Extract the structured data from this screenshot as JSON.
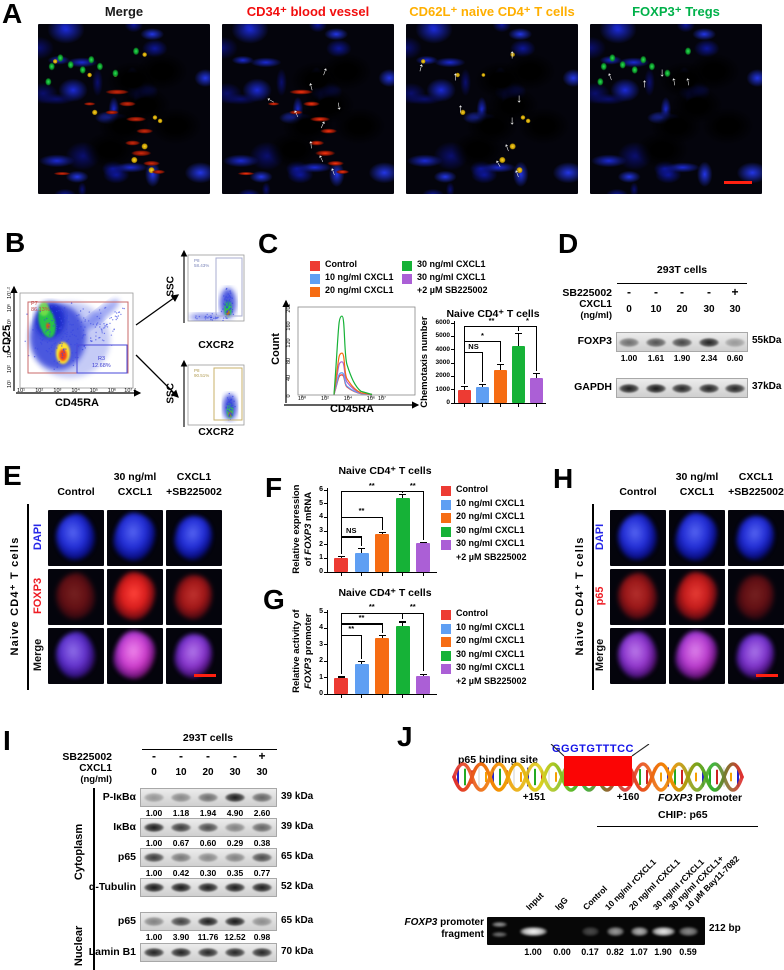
{
  "figure": {
    "background": "#ffffff"
  },
  "legend": [
    {
      "label": "Control",
      "color": "#ed3b33"
    },
    {
      "label": "10 ng/ml CXCL1",
      "color": "#5f9ff3"
    },
    {
      "label": "20 ng/ml CXCL1",
      "color": "#f66c13"
    },
    {
      "label": "30 ng/ml CXCL1",
      "color": "#16b237"
    },
    {
      "label": "30 ng/ml CXCL1",
      "label2": "+2 µM SB225002",
      "color": "#ab5fd6"
    }
  ],
  "panelA": {
    "label": "A",
    "titles": [
      {
        "text": "Merge",
        "color": "#1b1b1b"
      },
      {
        "text": "CD34⁺ blood vessel",
        "color": "#f20d0d"
      },
      {
        "text": "CD62L⁺ naive CD4⁺ T cells",
        "color": "#ffaf00"
      },
      {
        "text": "FOXP3⁺ Tregs",
        "color": "#00b14a"
      }
    ]
  },
  "panelB": {
    "label": "B",
    "main": {
      "ylabel": "CD25",
      "xlabel": "CD45RA",
      "xticks": [
        "10¹",
        "10²",
        "10³",
        "10⁴",
        "10⁵",
        "10⁶",
        "10⁷·²"
      ],
      "yticks": [
        "10¹",
        "10²",
        "10³",
        "10⁴",
        "10⁵",
        "10⁶",
        "10⁷·²"
      ],
      "gate1": {
        "name": "P7",
        "pct": "86.13%"
      },
      "gate2": {
        "name": "R3",
        "pct": "12.68%"
      }
    },
    "top": {
      "ylabel": "SSC",
      "xlabel": "CXCR2",
      "pct": "58.43%",
      "gate": "P8"
    },
    "bottom": {
      "ylabel": "SSC",
      "xlabel": "CXCR2",
      "pct": "90.51%",
      "gate": "P8"
    }
  },
  "panelC": {
    "label": "C",
    "hist": {
      "type": "line",
      "ylabel": "Count",
      "xlabel": "CD45RA",
      "ymax": 202,
      "yticks": [
        "202",
        "160",
        "120",
        "80",
        "40",
        "0"
      ],
      "xticks": [
        "10⁰",
        "10²",
        "10⁴",
        "10⁶",
        "10⁷"
      ],
      "series": [
        {
          "name": "Control",
          "peak": 45,
          "color": "#ed3b33"
        },
        {
          "name": "10 ng/ml CXCL1",
          "peak": 50,
          "color": "#5f9ff3"
        },
        {
          "name": "20 ng/ml CXCL1",
          "peak": 95,
          "color": "#f66c13"
        },
        {
          "name": "30 ng/ml CXCL1",
          "peak": 180,
          "color": "#16b237"
        },
        {
          "name": "30 ng/ml CXCL1 +2 µM SB225002",
          "peak": 75,
          "color": "#ab5fd6"
        }
      ]
    },
    "bar": {
      "type": "bar",
      "title": "Naive CD4⁺ T cells",
      "ylabel": "Chemotaxis number",
      "ymax": 6000,
      "yticks": [
        6000,
        5000,
        4000,
        3000,
        2000,
        1000,
        0
      ],
      "categories": [
        "Control",
        "10 ng/ml CXCL1",
        "20 ng/ml CXCL1",
        "30 ng/ml CXCL1",
        "30 ng/ml CXCL1 +2 µM SB225002"
      ],
      "values": [
        1000,
        1200,
        2450,
        4250,
        1900
      ],
      "errors": [
        300,
        250,
        500,
        1000,
        350
      ],
      "sig": [
        {
          "from": 0,
          "to": 1,
          "label": "NS",
          "y": 3800
        },
        {
          "from": 0,
          "to": 2,
          "label": "*",
          "y": 4650
        },
        {
          "from": 0,
          "to": 3,
          "label": "**",
          "y": 5750
        },
        {
          "from": 3,
          "to": 4,
          "label": "*",
          "y": 5750
        }
      ]
    }
  },
  "panelD": {
    "label": "D",
    "cells": "293T cells",
    "drug": "SB225002",
    "drug_vals": [
      "-",
      "-",
      "-",
      "-",
      "+"
    ],
    "ligand": "CXCL1",
    "ligand_unit": "(ng/ml)",
    "doses": [
      "0",
      "10",
      "20",
      "30",
      "30"
    ],
    "blots": [
      {
        "name": "FOXP3",
        "kda": "55kDa",
        "values": [
          "1.00",
          "1.61",
          "1.90",
          "2.34",
          "0.60"
        ],
        "band": [
          0.55,
          0.68,
          0.75,
          0.92,
          0.33
        ]
      },
      {
        "name": "GAPDH",
        "kda": "37kDa",
        "values": [],
        "band": [
          0.95,
          0.97,
          0.9,
          0.92,
          0.9
        ]
      }
    ]
  },
  "panelE": {
    "label": "E",
    "side": "Naive CD4⁺ T cells",
    "cols": [
      [
        "Control"
      ],
      [
        "30 ng/ml",
        "CXCL1"
      ],
      [
        "CXCL1",
        "+SB225002"
      ]
    ],
    "rows": [
      {
        "name": "DAPI",
        "color": "#2727e8"
      },
      {
        "name": "FOXP3",
        "color": "#ee1c24"
      },
      {
        "name": "Merge",
        "color": "#111111"
      }
    ]
  },
  "panelF": {
    "label": "F",
    "title": "Naive CD4⁺ T cells",
    "ylabel_line1": "Relative expression",
    "ylabel_line2_pre": "of ",
    "ylabel_italic": "FOXP3",
    "ylabel_line2_post": " mRNA",
    "bar": {
      "type": "bar",
      "ymax": 6,
      "yticks": [
        6,
        5,
        4,
        3,
        2,
        1,
        0
      ],
      "values": [
        1.0,
        1.4,
        2.8,
        5.4,
        2.1
      ],
      "errors": [
        0.15,
        0.35,
        0.12,
        0.3,
        0.08
      ],
      "sig": [
        {
          "from": 0,
          "to": 1,
          "label": "NS",
          "y": 2.6
        },
        {
          "from": 0,
          "to": 2,
          "label": "**",
          "y": 4.05
        },
        {
          "from": 0,
          "to": 3,
          "label": "**",
          "y": 5.9
        },
        {
          "from": 3,
          "to": 4,
          "label": "**",
          "y": 5.9
        }
      ]
    }
  },
  "panelG": {
    "label": "G",
    "title": "Naive CD4⁺ T cells",
    "ylabel_line1": "Relative activity of",
    "ylabel_line2_pre": "",
    "ylabel_italic": "FOXP3",
    "ylabel_line2_post": " promoter",
    "bar": {
      "type": "bar",
      "ymax": 5,
      "yticks": [
        5,
        4,
        3,
        2,
        1,
        0
      ],
      "values": [
        1.0,
        1.8,
        3.4,
        4.15,
        1.1
      ],
      "errors": [
        0.07,
        0.2,
        0.18,
        0.28,
        0.15
      ],
      "sig": [
        {
          "from": 0,
          "to": 1,
          "label": "**",
          "y": 3.6
        },
        {
          "from": 0,
          "to": 2,
          "label": "**",
          "y": 4.3
        },
        {
          "from": 0,
          "to": 3,
          "label": "**",
          "y": 4.95
        },
        {
          "from": 3,
          "to": 4,
          "label": "**",
          "y": 4.95
        }
      ]
    }
  },
  "panelH": {
    "label": "H",
    "side": "Naive CD4⁺ T cells",
    "cols": [
      [
        "Control"
      ],
      [
        "30 ng/ml",
        "CXCL1"
      ],
      [
        "CXCL1",
        "+SB225002"
      ]
    ],
    "rows": [
      {
        "name": "DAPI",
        "color": "#2727e8"
      },
      {
        "name": "p65",
        "color": "#ee1c24"
      },
      {
        "name": "Merge",
        "color": "#111111"
      }
    ]
  },
  "panelI": {
    "label": "I",
    "cells": "293T cells",
    "drug": "SB225002",
    "drug_vals": [
      "-",
      "-",
      "-",
      "-",
      "+"
    ],
    "ligand": "CXCL1",
    "ligand_unit": "(ng/ml)",
    "doses": [
      "0",
      "10",
      "20",
      "30",
      "30"
    ],
    "groups": [
      {
        "name": "Cytoplasm",
        "blots": [
          {
            "name": "P-IκBα",
            "kda": "39 kDa",
            "values": [
              "1.00",
              "1.18",
              "1.94",
              "4.90",
              "2.60"
            ],
            "band": [
              0.35,
              0.42,
              0.55,
              0.95,
              0.6
            ]
          },
          {
            "name": "IκBα",
            "kda": "39 kDa",
            "values": [
              "1.00",
              "0.67",
              "0.60",
              "0.29",
              "0.38"
            ],
            "band": [
              0.95,
              0.8,
              0.72,
              0.45,
              0.6
            ]
          },
          {
            "name": "p65",
            "kda": "65 kDa",
            "values": [
              "1.00",
              "0.42",
              "0.30",
              "0.35",
              "0.77"
            ],
            "band": [
              0.8,
              0.5,
              0.42,
              0.45,
              0.72
            ]
          },
          {
            "name": "α-Tubulin",
            "kda": "52 kDa",
            "values": [],
            "band": [
              0.97,
              0.97,
              0.95,
              0.95,
              0.95
            ]
          }
        ]
      },
      {
        "name": "Nuclear",
        "blots": [
          {
            "name": "p65",
            "kda": "65 kDa",
            "values": [
              "1.00",
              "3.90",
              "11.76",
              "12.52",
              "0.98"
            ],
            "band": [
              0.45,
              0.78,
              0.95,
              0.97,
              0.4
            ]
          },
          {
            "name": "Lamin B1",
            "kda": "70 kDa",
            "values": [],
            "band": [
              0.92,
              0.92,
              0.9,
              0.9,
              0.9
            ]
          }
        ]
      }
    ]
  },
  "panelJ": {
    "label": "J",
    "binding_site": "p65 binding site",
    "sequence": "GGGTGTTTCC",
    "pos_left": "+151",
    "pos_right": "+160",
    "promoter_italic": "FOXP3",
    "promoter_rest": " Promoter",
    "chip": "CHIP: p65",
    "lane_labels": [
      "Input",
      "IgG",
      "Control",
      "10 ng/ml rCXCL1",
      "20 ng/ml rCXCL1",
      "30 ng/ml rCXCL1",
      "30 ng/ml rCXCL1+",
      "10 µM Bay11-7082"
    ],
    "gel_left_italic": "FOXP3",
    "gel_left_rest": " promoter",
    "gel_left_line2": "fragment",
    "size_label": "212 bp",
    "values": [
      "1.00",
      "0.00",
      "0.17",
      "0.82",
      "1.07",
      "1.90",
      "0.59"
    ],
    "band": [
      1.0,
      0.0,
      0.28,
      0.62,
      0.72,
      0.95,
      0.55
    ]
  }
}
